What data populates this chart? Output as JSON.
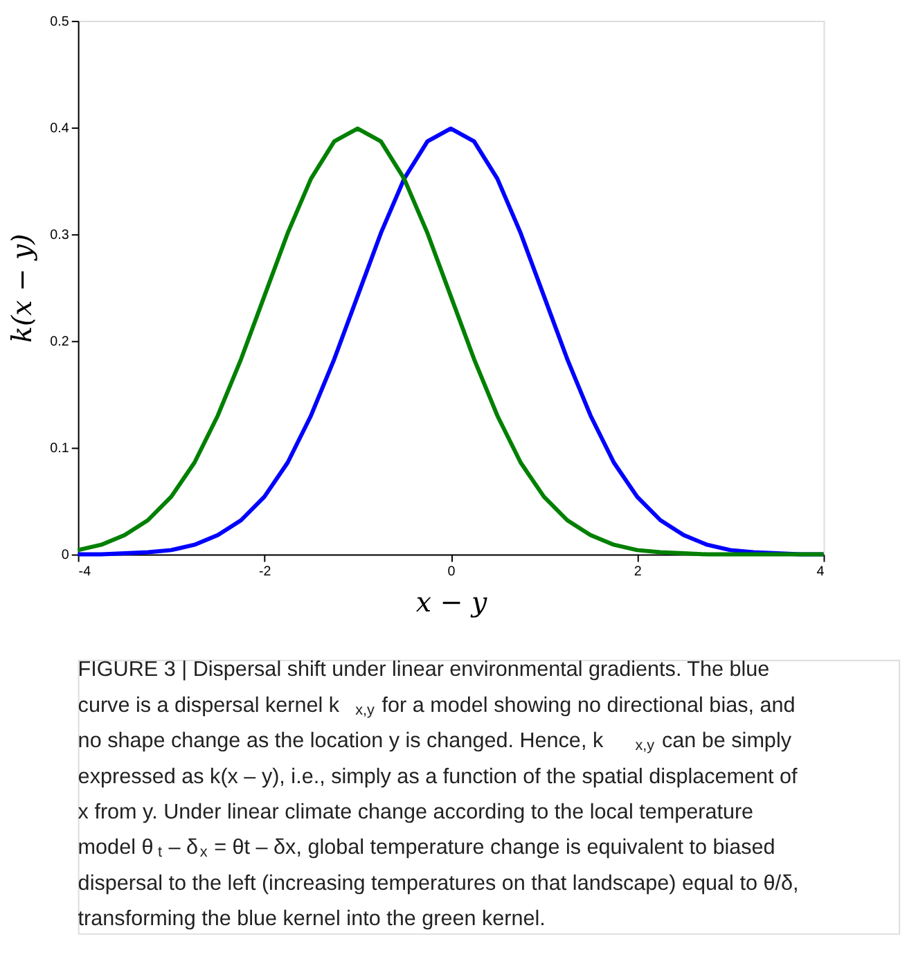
{
  "chart_data": {
    "type": "line",
    "xlabel": "x − y",
    "ylabel": "k(x − y)",
    "x": [
      -4,
      -3.75,
      -3.5,
      -3.25,
      -3,
      -2.75,
      -2.5,
      -2.25,
      -2,
      -1.75,
      -1.5,
      -1.25,
      -1,
      -0.75,
      -0.5,
      -0.25,
      0,
      0.25,
      0.5,
      0.75,
      1,
      1.25,
      1.5,
      1.75,
      2,
      2.25,
      2.5,
      2.75,
      3,
      3.25,
      3.5,
      3.75,
      4
    ],
    "series": [
      {
        "color": "#0000ff",
        "values": [
          0.0,
          0.0,
          0.001,
          0.002,
          0.004,
          0.009,
          0.018,
          0.032,
          0.054,
          0.086,
          0.13,
          0.183,
          0.242,
          0.301,
          0.352,
          0.387,
          0.399,
          0.387,
          0.352,
          0.301,
          0.242,
          0.183,
          0.13,
          0.086,
          0.054,
          0.032,
          0.018,
          0.009,
          0.004,
          0.002,
          0.001,
          0.0,
          0.0
        ]
      },
      {
        "color": "#008000",
        "values": [
          0.004,
          0.009,
          0.018,
          0.032,
          0.054,
          0.086,
          0.13,
          0.183,
          0.242,
          0.301,
          0.352,
          0.387,
          0.399,
          0.387,
          0.352,
          0.301,
          0.242,
          0.183,
          0.13,
          0.086,
          0.054,
          0.032,
          0.018,
          0.009,
          0.004,
          0.002,
          0.001,
          0.0,
          0.0,
          0.0,
          0.0,
          0.0,
          0.0
        ]
      }
    ],
    "xlim": [
      -4,
      4
    ],
    "xticks": [
      {
        "value": -4,
        "label": "-4"
      },
      {
        "value": -2,
        "label": "-2"
      },
      0,
      2,
      4
    ],
    "ylim": [
      0,
      0.5
    ],
    "yticks": [
      {
        "value": 0,
        "label": "0"
      },
      0.1,
      0.2,
      0.3,
      0.4,
      0.5
    ],
    "grid": false,
    "legend": false,
    "marker": "none",
    "line_style": "solid",
    "annotations": [
      "FIGURE 3 | Dispersal shift under linear environmental gradients. The blue curve is a dispersal kernel k$_{x,y}$ for a model showing no directional bias, and no shape change as the location y is changed. Hence, k$_{x,y}$ can be simply expressed as k(x – y), i.e., simply as a function of the spatial displacement of x from y. Under linear climate change according to the local temperature model θ$_{t}$ – δ$_{x}$ = θt – δx, global temperature change is equivalent to biased dispersal to the left (increasing temperatures on that landscape) equal to θ/δ, transforming the blue kernel into the green kernel."
    ]
  }
}
